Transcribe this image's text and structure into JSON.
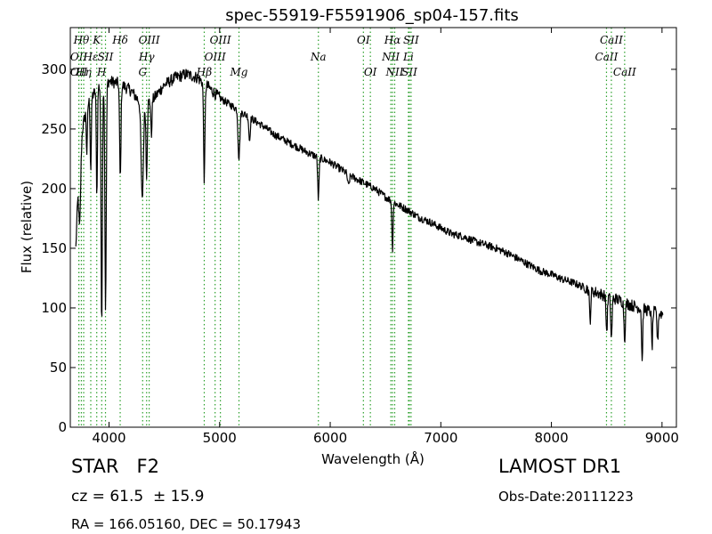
{
  "chart_data": {
    "type": "line",
    "title": "spec-55919-F5591906_sp04-157.fits",
    "xlabel": "Wavelength (Å)",
    "ylabel": "Flux (relative)",
    "xlim": [
      3650,
      9130
    ],
    "ylim": [
      0,
      335
    ],
    "xticks": [
      4000,
      5000,
      6000,
      7000,
      8000,
      9000
    ],
    "yticks": [
      0,
      50,
      100,
      150,
      200,
      250,
      300
    ],
    "grid": false,
    "line_color": "#000000",
    "marker_color": "#2ca02c",
    "spectrum_continuum": [
      [
        3700,
        150
      ],
      [
        3720,
        200
      ],
      [
        3760,
        250
      ],
      [
        3800,
        270
      ],
      [
        3850,
        278
      ],
      [
        3900,
        285
      ],
      [
        3950,
        288
      ],
      [
        4000,
        290
      ],
      [
        4100,
        288
      ],
      [
        4200,
        282
      ],
      [
        4300,
        270
      ],
      [
        4400,
        275
      ],
      [
        4500,
        287
      ],
      [
        4600,
        293
      ],
      [
        4700,
        296
      ],
      [
        4800,
        293
      ],
      [
        4900,
        285
      ],
      [
        5000,
        276
      ],
      [
        5100,
        270
      ],
      [
        5200,
        264
      ],
      [
        5300,
        258
      ],
      [
        5400,
        252
      ],
      [
        5500,
        245
      ],
      [
        5600,
        240
      ],
      [
        5700,
        235
      ],
      [
        5800,
        230
      ],
      [
        5900,
        226
      ],
      [
        6000,
        222
      ],
      [
        6100,
        216
      ],
      [
        6200,
        210
      ],
      [
        6300,
        205
      ],
      [
        6400,
        200
      ],
      [
        6500,
        193
      ],
      [
        6600,
        187
      ],
      [
        6700,
        182
      ],
      [
        6800,
        176
      ],
      [
        6900,
        172
      ],
      [
        7000,
        167
      ],
      [
        7100,
        162
      ],
      [
        7200,
        160
      ],
      [
        7300,
        156
      ],
      [
        7400,
        153
      ],
      [
        7500,
        150
      ],
      [
        7600,
        146
      ],
      [
        7700,
        141
      ],
      [
        7800,
        136
      ],
      [
        7900,
        131
      ],
      [
        8000,
        128
      ],
      [
        8100,
        124
      ],
      [
        8200,
        121
      ],
      [
        8300,
        117
      ],
      [
        8400,
        113
      ],
      [
        8500,
        110
      ],
      [
        8600,
        107
      ],
      [
        8700,
        103
      ],
      [
        8800,
        100
      ],
      [
        8900,
        97
      ],
      [
        9000,
        95
      ]
    ],
    "absorption_features": [
      [
        3735,
        50,
        8
      ],
      [
        3800,
        40,
        5
      ],
      [
        3835,
        60,
        5
      ],
      [
        3890,
        90,
        5
      ],
      [
        3934,
        200,
        6
      ],
      [
        3969,
        190,
        6
      ],
      [
        4102,
        80,
        6
      ],
      [
        4300,
        80,
        10
      ],
      [
        4340,
        60,
        6
      ],
      [
        4383,
        30,
        5
      ],
      [
        4861,
        80,
        6
      ],
      [
        5175,
        40,
        8
      ],
      [
        5270,
        20,
        6
      ],
      [
        5893,
        35,
        6
      ],
      [
        6165,
        10,
        8
      ],
      [
        6563,
        40,
        5
      ],
      [
        8350,
        25,
        6
      ],
      [
        8500,
        30,
        6
      ],
      [
        8542,
        35,
        6
      ],
      [
        8662,
        30,
        6
      ],
      [
        8820,
        45,
        5
      ],
      [
        8910,
        30,
        5
      ],
      [
        8960,
        25,
        5
      ]
    ],
    "line_markers": [
      {
        "x": 3727,
        "label": "OII",
        "row": 1
      },
      {
        "x": 3727,
        "label": "OII",
        "row": 2
      },
      {
        "x": 3750,
        "label": "Hθ",
        "row": 0
      },
      {
        "x": 3771,
        "label": "Hη",
        "row": 2
      },
      {
        "x": 3835,
        "label": "Hε",
        "row": 1
      },
      {
        "x": 3889,
        "label": "K",
        "row": 0
      },
      {
        "x": 3934,
        "label": "H",
        "row": 2
      },
      {
        "x": 3968,
        "label": "SII",
        "row": 1
      },
      {
        "x": 4101,
        "label": "Hδ",
        "row": 0
      },
      {
        "x": 4304,
        "label": "G",
        "row": 2
      },
      {
        "x": 4340,
        "label": "Hγ",
        "row": 1
      },
      {
        "x": 4363,
        "label": "OIII",
        "row": 0
      },
      {
        "x": 4861,
        "label": "Hβ",
        "row": 2
      },
      {
        "x": 4959,
        "label": "OIII",
        "row": 1
      },
      {
        "x": 5007,
        "label": "OIII",
        "row": 0
      },
      {
        "x": 5175,
        "label": "Mg",
        "row": 2
      },
      {
        "x": 5893,
        "label": "Na",
        "row": 1
      },
      {
        "x": 6300,
        "label": "OI",
        "row": 0
      },
      {
        "x": 6363,
        "label": "OI",
        "row": 2
      },
      {
        "x": 6548,
        "label": "NII",
        "row": 1
      },
      {
        "x": 6563,
        "label": "Hα",
        "row": 0
      },
      {
        "x": 6583,
        "label": "NII",
        "row": 2
      },
      {
        "x": 6707,
        "label": "Li",
        "row": 1
      },
      {
        "x": 6716,
        "label": "SII",
        "row": 2
      },
      {
        "x": 6731,
        "label": "SII",
        "row": 0
      },
      {
        "x": 8498,
        "label": "CaII",
        "row": 1
      },
      {
        "x": 8542,
        "label": "CaII",
        "row": 0
      },
      {
        "x": 8662,
        "label": "CaII",
        "row": 2
      }
    ]
  },
  "info": {
    "class_text": "STAR   F2",
    "cz_text": "cz = 61.5  ± 15.9",
    "radec_text": "RA = 166.05160, DEC = 50.17943",
    "survey_text": "LAMOST DR1",
    "obsdate_text": "Obs-Date:20111223"
  }
}
